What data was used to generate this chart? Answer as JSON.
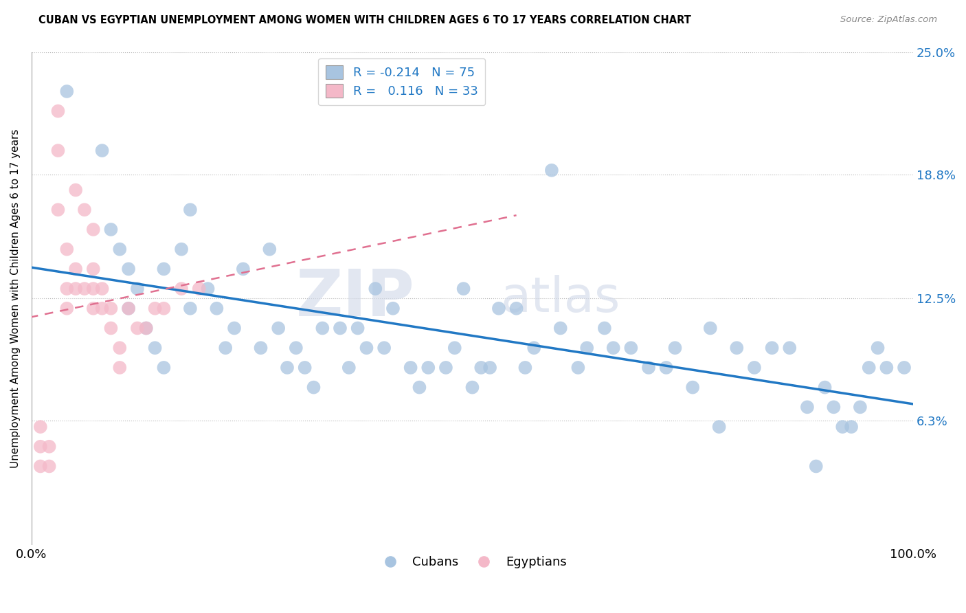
{
  "title": "CUBAN VS EGYPTIAN UNEMPLOYMENT AMONG WOMEN WITH CHILDREN AGES 6 TO 17 YEARS CORRELATION CHART",
  "source": "Source: ZipAtlas.com",
  "ylabel": "Unemployment Among Women with Children Ages 6 to 17 years",
  "xlabel": "",
  "xlim": [
    0,
    100
  ],
  "ylim": [
    0,
    25
  ],
  "yticks": [
    6.3,
    12.5,
    18.8,
    25.0
  ],
  "ytick_labels": [
    "6.3%",
    "12.5%",
    "18.8%",
    "25.0%"
  ],
  "xticks": [
    0,
    100
  ],
  "xtick_labels": [
    "0.0%",
    "100.0%"
  ],
  "cuban_R": "-0.214",
  "cuban_N": "75",
  "egyptian_R": "0.116",
  "egyptian_N": "33",
  "cuban_color": "#a8c4e0",
  "egyptian_color": "#f4b8c8",
  "cuban_line_color": "#2178c4",
  "egyptian_line_color": "#e07090",
  "watermark_big": "ZIP",
  "watermark_small": "atlas",
  "cuban_x": [
    4,
    8,
    9,
    10,
    11,
    11,
    12,
    13,
    14,
    15,
    15,
    17,
    18,
    18,
    20,
    21,
    22,
    23,
    24,
    26,
    27,
    28,
    29,
    30,
    31,
    32,
    33,
    35,
    36,
    37,
    38,
    39,
    40,
    41,
    43,
    44,
    45,
    47,
    48,
    49,
    50,
    51,
    52,
    53,
    55,
    56,
    57,
    59,
    60,
    62,
    63,
    65,
    66,
    68,
    70,
    72,
    73,
    75,
    77,
    78,
    80,
    82,
    84,
    86,
    88,
    89,
    90,
    91,
    92,
    93,
    94,
    95,
    96,
    97,
    99
  ],
  "cuban_y": [
    23,
    20,
    16,
    15,
    14,
    12,
    13,
    11,
    10,
    9,
    14,
    15,
    12,
    17,
    13,
    12,
    10,
    11,
    14,
    10,
    15,
    11,
    9,
    10,
    9,
    8,
    11,
    11,
    9,
    11,
    10,
    13,
    10,
    12,
    9,
    8,
    9,
    9,
    10,
    13,
    8,
    9,
    9,
    12,
    12,
    9,
    10,
    19,
    11,
    9,
    10,
    11,
    10,
    10,
    9,
    9,
    10,
    8,
    11,
    6,
    10,
    9,
    10,
    10,
    7,
    4,
    8,
    7,
    6,
    6,
    7,
    9,
    10,
    9,
    9
  ],
  "egyptian_x": [
    1,
    1,
    1,
    2,
    2,
    3,
    3,
    3,
    4,
    4,
    4,
    5,
    5,
    5,
    6,
    6,
    7,
    7,
    7,
    7,
    8,
    8,
    9,
    9,
    10,
    10,
    11,
    12,
    13,
    14,
    15,
    17,
    19
  ],
  "egyptian_y": [
    4,
    5,
    6,
    4,
    5,
    20,
    22,
    17,
    15,
    13,
    12,
    18,
    14,
    13,
    17,
    13,
    16,
    14,
    13,
    12,
    13,
    12,
    12,
    11,
    10,
    9,
    12,
    11,
    11,
    12,
    12,
    13,
    13
  ]
}
